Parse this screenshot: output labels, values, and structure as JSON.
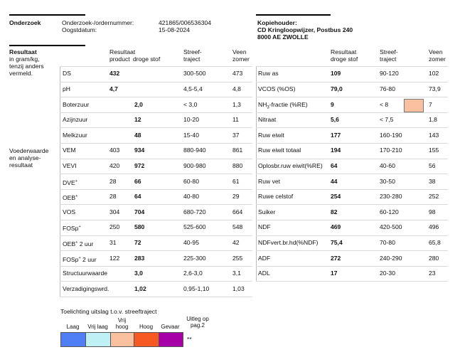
{
  "header": {
    "section_label": "Onderzoek",
    "order_label": "Onderzoek-/ordernummer:",
    "order_value": "421865/006536304",
    "date_label": "Oogstdatum:",
    "date_value": "15-08-2024",
    "copy_holder_label": "Kopiehouder:",
    "copy_holder_line1": "CD Kringloopwijzer, Postbus 240",
    "copy_holder_line2": "8000 AE  ZWOLLE"
  },
  "left_info": {
    "result_title": "Resultaat",
    "result_desc": [
      "in gram/kg,",
      "tenzij anders",
      "vermeld."
    ],
    "feed_desc": [
      "Voederwaarde",
      "en analyse-",
      "resultaat"
    ]
  },
  "left_headers": {
    "product": [
      "Resultaat",
      "product"
    ],
    "droge_stof": [
      "",
      "droge stof"
    ],
    "streef": [
      "Streef-",
      "traject"
    ],
    "veen": [
      "Veen",
      "zomer"
    ]
  },
  "right_headers": {
    "droge_stof": [
      "Resultaat",
      "droge stof"
    ],
    "streef": [
      "Streef-",
      "traject"
    ],
    "veen": [
      "Veen",
      "zomer"
    ]
  },
  "left_rows": [
    {
      "name": "DS",
      "product": "432",
      "product_bold": true,
      "ds": "",
      "streef": "300-500",
      "veen": "473"
    },
    {
      "name": "pH",
      "product": "4,7",
      "product_bold": true,
      "ds": "",
      "streef": "4,5-5,4",
      "veen": "4,8"
    },
    {
      "name": "Boterzuur",
      "product": "",
      "ds": "2,0",
      "streef": "< 3,0",
      "veen": "1,3"
    },
    {
      "name": "Azijnzuur",
      "product": "",
      "ds": "12",
      "streef": "10-20",
      "veen": "11"
    },
    {
      "name": "Melkzuur",
      "product": "",
      "ds": "48",
      "streef": "15-40",
      "veen": "37"
    },
    {
      "name": "VEM",
      "product": "403",
      "ds": "934",
      "streef": "880-940",
      "veen": "861"
    },
    {
      "name": "VEVI",
      "product": "420",
      "ds": "972",
      "streef": "900-980",
      "veen": "880"
    },
    {
      "name": "DVE*",
      "product": "28",
      "ds": "66",
      "streef": "60-80",
      "veen": "61"
    },
    {
      "name": "OEB*",
      "product": "28",
      "ds": "64",
      "streef": "40-80",
      "veen": "29"
    },
    {
      "name": "VOS",
      "product": "304",
      "ds": "704",
      "streef": "680-720",
      "veen": "664"
    },
    {
      "name": "FOSp*",
      "product": "250",
      "ds": "580",
      "streef": "525-600",
      "veen": "548"
    },
    {
      "name": "OEB* 2 uur",
      "product": "31",
      "ds": "72",
      "streef": "40-95",
      "veen": "42"
    },
    {
      "name": "FOSp* 2 uur",
      "product": "122",
      "ds": "283",
      "streef": "225-300",
      "veen": "255"
    },
    {
      "name": "Structuurwaarde",
      "product": "",
      "ds": "3,0",
      "streef": "2,6-3,0",
      "veen": "3,1"
    },
    {
      "name": "Verzadigingswrd.",
      "product": "",
      "ds": "1,02",
      "streef": "0,95-1,10",
      "veen": "1,03"
    }
  ],
  "right_rows": [
    {
      "name": "Ruw as",
      "ds": "109",
      "streef": "90-120",
      "veen": "102"
    },
    {
      "name": "VCOS (%OS)",
      "ds": "79,0",
      "streef": "76-80",
      "veen": "73,9"
    },
    {
      "name": "NH3-fractie (%RE)",
      "ds": "9",
      "streef": "< 8",
      "veen": "7",
      "flag_color": "#f9c0a0"
    },
    {
      "name": "Nitraat",
      "ds": "5,6",
      "streef": "< 7,5",
      "veen": "1,8"
    },
    {
      "name": "Ruw eiwit",
      "ds": "177",
      "streef": "160-190",
      "veen": "143"
    },
    {
      "name": "Ruw eiwit totaal",
      "ds": "194",
      "streef": "170-210",
      "veen": "155"
    },
    {
      "name": "Oplosbr.ruw eiwit(%RE)",
      "ds": "64",
      "streef": "40-60",
      "veen": "56"
    },
    {
      "name": "Ruw vet",
      "ds": "44",
      "streef": "30-50",
      "veen": "38"
    },
    {
      "name": "Ruwe celstof",
      "ds": "254",
      "streef": "230-280",
      "veen": "252"
    },
    {
      "name": "Suiker",
      "ds": "82",
      "streef": "60-120",
      "veen": "98"
    },
    {
      "name": "NDF",
      "ds": "469",
      "streef": "420-500",
      "veen": "496"
    },
    {
      "name": "NDFvert.br.hd(%NDF)",
      "ds": "75,4",
      "streef": "70-80",
      "veen": "65,8"
    },
    {
      "name": "ADF",
      "ds": "272",
      "streef": "240-290",
      "veen": "280"
    },
    {
      "name": "ADL",
      "ds": "17",
      "streef": "20-30",
      "veen": "23"
    }
  ],
  "legend": {
    "title": "Toelichting uitslag t.o.v. streeftraject",
    "items": [
      {
        "label": "Laag",
        "color": "#4f7df3"
      },
      {
        "label": "Vrij laag",
        "color": "#bff0f5"
      },
      {
        "label": "Vrij hoog",
        "color": "#f9c0a0"
      },
      {
        "label": "Hoog",
        "color": "#f65a22"
      },
      {
        "label": "Gevaar",
        "color": "#a800a8"
      }
    ],
    "extra_label": "Uitleg op pag.2",
    "extra_mark": "**"
  }
}
